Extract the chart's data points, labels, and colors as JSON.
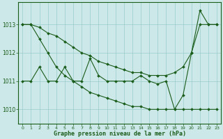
{
  "x": [
    0,
    1,
    2,
    3,
    4,
    5,
    6,
    7,
    8,
    9,
    10,
    11,
    12,
    13,
    14,
    15,
    16,
    17,
    18,
    19,
    20,
    21,
    22,
    23
  ],
  "line_upper": [
    1013.0,
    1013.0,
    1012.9,
    1012.7,
    1012.6,
    1012.4,
    1012.2,
    1012.0,
    1011.9,
    1011.7,
    1011.6,
    1011.5,
    1011.4,
    1011.3,
    1011.3,
    1011.2,
    1011.2,
    1011.2,
    1011.3,
    1011.5,
    1012.0,
    1013.0,
    1013.0,
    1013.0
  ],
  "line_lower": [
    1013.0,
    1013.0,
    1012.5,
    1012.0,
    1011.5,
    1011.2,
    1011.0,
    1010.8,
    1010.6,
    1010.5,
    1010.4,
    1010.3,
    1010.2,
    1010.1,
    1010.1,
    1010.0,
    1010.0,
    1010.0,
    1010.0,
    1010.0,
    1010.0,
    1010.0,
    1010.0,
    1010.0
  ],
  "line_mid": [
    1011.0,
    1011.0,
    1011.5,
    1011.0,
    1011.0,
    1011.5,
    1011.0,
    1011.0,
    1011.8,
    1011.2,
    1011.0,
    1011.0,
    1011.0,
    1011.0,
    1011.2,
    1011.0,
    1010.9,
    1011.0,
    1010.0,
    1010.5,
    1012.0,
    1013.5,
    1013.0,
    1013.0
  ],
  "line_color": "#1a5c1a",
  "bg_color": "#cce8e8",
  "grid_color": "#99cccc",
  "xlabel": "Graphe pression niveau de la mer (hPa)",
  "ylim": [
    1009.5,
    1013.8
  ],
  "yticks": [
    1010,
    1011,
    1012,
    1013
  ],
  "xticks": [
    0,
    1,
    2,
    3,
    4,
    5,
    6,
    7,
    8,
    9,
    10,
    11,
    12,
    13,
    14,
    15,
    16,
    17,
    18,
    19,
    20,
    21,
    22,
    23
  ]
}
